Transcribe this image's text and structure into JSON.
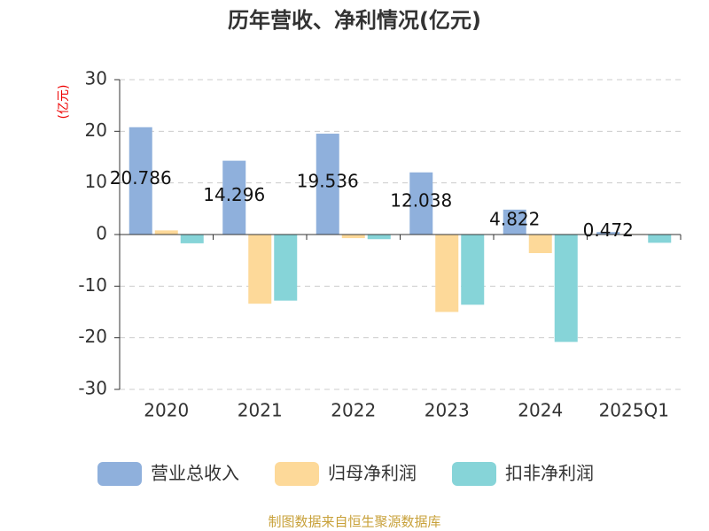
{
  "chart_data": {
    "type": "bar",
    "title": "历年营收、净利情况(亿元)",
    "y_label": "(亿元)",
    "categories": [
      "2020",
      "2021",
      "2022",
      "2023",
      "2024",
      "2025Q1"
    ],
    "series": [
      {
        "name": "营业总收入",
        "color": "#8fb0dc",
        "values": [
          20.786,
          14.296,
          19.536,
          12.038,
          4.822,
          0.472
        ]
      },
      {
        "name": "归母净利润",
        "color": "#fdd999",
        "values": [
          0.8,
          -13.4,
          -0.7,
          -15.0,
          -3.6,
          0.1
        ]
      },
      {
        "name": "扣非净利润",
        "color": "#86d4d8",
        "values": [
          -1.7,
          -12.8,
          -0.9,
          -13.6,
          -20.8,
          -1.6
        ]
      }
    ],
    "ylim": [
      -30,
      30
    ],
    "yticks": [
      -30,
      -20,
      -10,
      0,
      10,
      20,
      30
    ],
    "grid": true,
    "source": "制图数据来自恒生聚源数据库"
  }
}
